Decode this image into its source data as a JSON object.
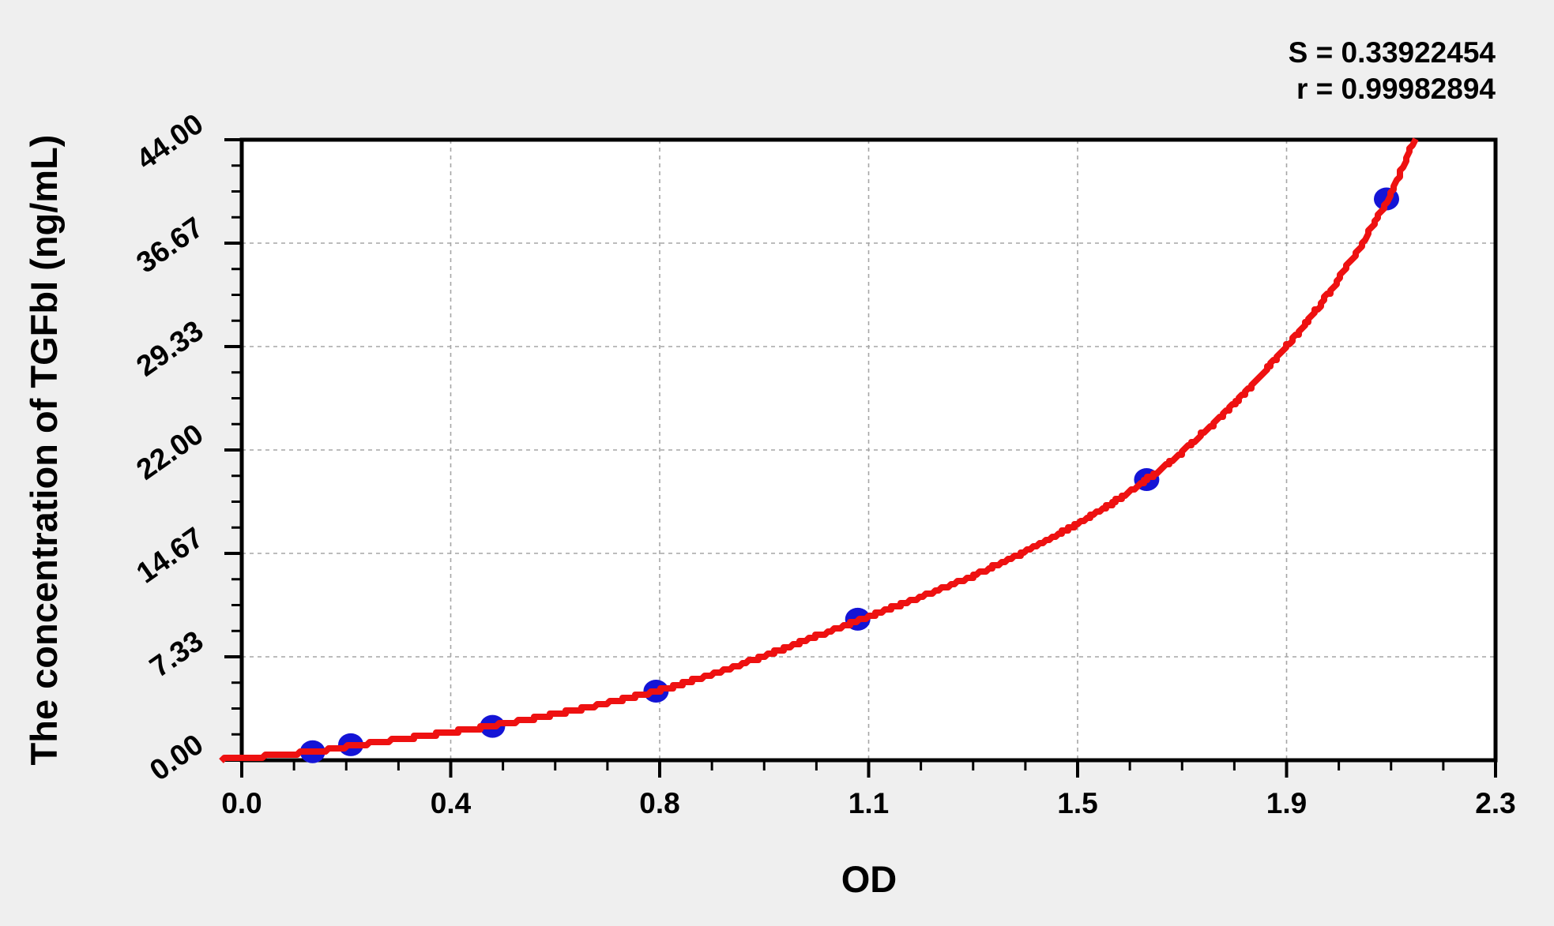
{
  "chart_data": {
    "type": "scatter",
    "title": "",
    "xlabel": "OD",
    "ylabel": "The concentration of TGFbI (ng/mL)",
    "xlim": [
      0,
      2.3
    ],
    "ylim": [
      0,
      44
    ],
    "x_major_tick_labels": [
      "0.0",
      "0.4",
      "0.8",
      "1.1",
      "1.5",
      "1.9",
      "2.3"
    ],
    "y_major_tick_labels": [
      "0.00",
      "7.33",
      "14.67",
      "22.00",
      "29.33",
      "36.67",
      "44.00"
    ],
    "minor_ticks_between_majors": 3,
    "grid": "dashed gridlines at major ticks",
    "legend_position": "none",
    "annotations": [
      "S = 0.33922454",
      "r = 0.99982894"
    ],
    "stats": {
      "S": 0.33922454,
      "r": 0.99982894
    },
    "series": [
      {
        "name": "standard points",
        "type": "scatter",
        "color": "#1414d6",
        "points_od_conc": [
          [
            0.13,
            0.6
          ],
          [
            0.2,
            1.1
          ],
          [
            0.46,
            2.4
          ],
          [
            0.76,
            4.9
          ],
          [
            1.13,
            10.0
          ],
          [
            1.66,
            19.9
          ],
          [
            2.1,
            39.8
          ]
        ]
      },
      {
        "name": "fitted curve",
        "type": "line",
        "color": "#ee1111",
        "points_od_conc": [
          [
            -0.035,
            0.05
          ],
          [
            0.13,
            0.6
          ],
          [
            0.2,
            1.0
          ],
          [
            0.46,
            2.45
          ],
          [
            0.76,
            4.9
          ],
          [
            1.13,
            9.9
          ],
          [
            1.4,
            14.1
          ],
          [
            1.66,
            19.9
          ],
          [
            1.92,
            29.5
          ],
          [
            2.1,
            39.6
          ],
          [
            2.152,
            44.0
          ]
        ]
      }
    ],
    "colors": {
      "background": "#efefef",
      "plot_background": "#ffffff",
      "frame": "#000000",
      "gridline": "#a6a6a6",
      "tick": "#000000",
      "point": "#1414d6",
      "curve": "#ee1111"
    }
  }
}
